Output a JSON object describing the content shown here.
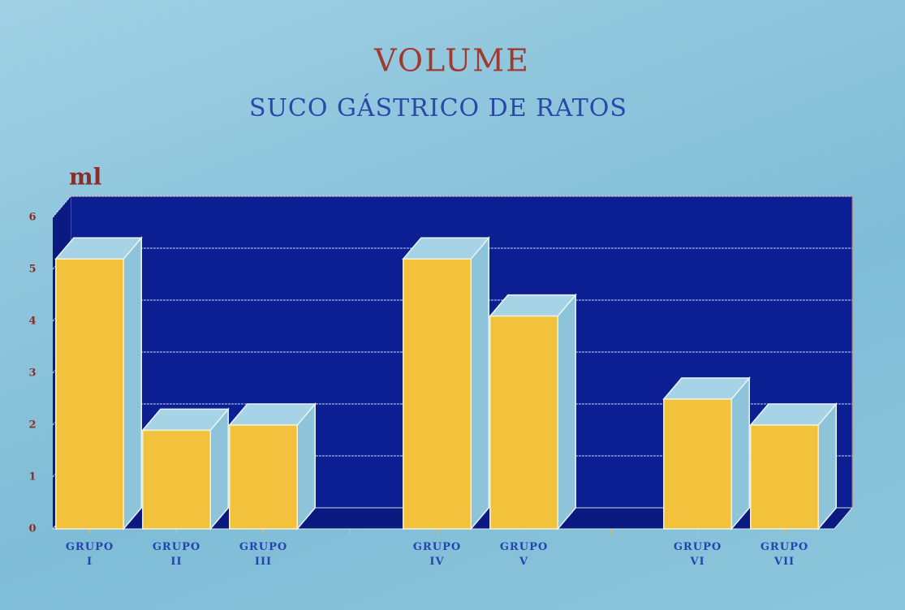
{
  "chart_data": {
    "type": "bar3d",
    "title": "VOLUME",
    "subtitle": "SUCO GÁSTRICO DE RATOS",
    "y_label": "ml",
    "categories": [
      "GRUPO I",
      "GRUPO II",
      "GRUPO III",
      null,
      "GRUPO IV",
      "GRUPO V",
      null,
      "GRUPO VI",
      "GRUPO VII"
    ],
    "values": [
      5.2,
      1.9,
      2.0,
      null,
      5.2,
      4.1,
      null,
      2.5,
      2.0
    ],
    "color": "#f2c23c",
    "wall_color": "#0c1f92",
    "ylim": [
      0,
      6
    ],
    "yticks": [
      0,
      1,
      2,
      3,
      4,
      5,
      6
    ],
    "grid": true
  }
}
